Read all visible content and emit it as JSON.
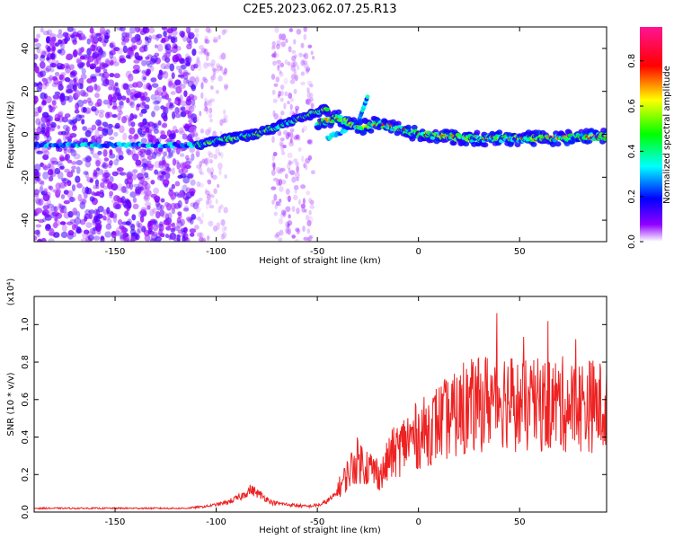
{
  "title": "C2E5.2023.062.07.25.R13",
  "chart_data": [
    {
      "type": "heatmap",
      "xlabel": "Height of straight line (km)",
      "ylabel": "Frequency (Hz)",
      "xlim": [
        -190,
        93
      ],
      "ylim": [
        -50,
        50
      ],
      "x_ticks": [
        -150,
        -100,
        -50,
        0,
        50
      ],
      "x_tick_labels": [
        "-150",
        "-100",
        "-50",
        "0",
        "50"
      ],
      "y_ticks": [
        -40,
        -20,
        0,
        20,
        40
      ],
      "y_tick_labels": [
        "-40",
        "-20",
        "0",
        "20",
        "40"
      ],
      "colorbar": {
        "label": "Normalized spectral amplitude",
        "range": [
          0,
          0.95
        ],
        "ticks": [
          0.0,
          0.2,
          0.4,
          0.6,
          0.8
        ],
        "tick_labels": [
          "0.0",
          "0.2",
          "0.4",
          "0.6",
          "0.8"
        ],
        "colors": [
          "#ffffff",
          "#9000ff",
          "#0000ff",
          "#00ffff",
          "#00ff00",
          "#ffff00",
          "#ff0000",
          "#ff1493"
        ]
      },
      "ridges": [
        {
          "x": [
            -190,
            -150,
            -110,
            -100,
            -80,
            -60,
            -45
          ],
          "y": [
            -5,
            -5,
            -5,
            -3,
            0,
            7,
            12
          ]
        },
        {
          "x": [
            -50,
            -40,
            -30,
            -20,
            0,
            30,
            60,
            90
          ],
          "y": [
            5,
            8,
            3,
            5,
            0,
            -2,
            -2,
            -1
          ]
        }
      ],
      "grid": false
    },
    {
      "type": "line",
      "xlabel": "Height of straight line (km)",
      "ylabel": "SNR (10 * v/v)",
      "y_multiplier_label": "(x10⁴)",
      "xlim": [
        -190,
        93
      ],
      "ylim": [
        0,
        1.15
      ],
      "x_ticks": [
        -150,
        -100,
        -50,
        0,
        50
      ],
      "x_tick_labels": [
        "-150",
        "-100",
        "-50",
        "0",
        "50"
      ],
      "y_ticks": [
        0.0,
        0.2,
        0.4,
        0.6,
        0.8,
        1.0
      ],
      "y_tick_labels": [
        "0.0",
        "0.2",
        "0.4",
        "0.6",
        "0.8",
        "1.0"
      ],
      "color": "#ee2222",
      "series": [
        {
          "x": [
            -190,
            -170,
            -150,
            -130,
            -115,
            -105,
            -95,
            -88,
            -83,
            -78,
            -72,
            -65,
            -55,
            -48,
            -42,
            -38,
            -34,
            -30,
            -26,
            -22,
            -18,
            -14,
            -10,
            -6,
            -2,
            2,
            6,
            10,
            15,
            20,
            25,
            30,
            35,
            40,
            45,
            50,
            55,
            60,
            65,
            70,
            75,
            80,
            85,
            90,
            93
          ],
          "y": [
            0.02,
            0.02,
            0.02,
            0.02,
            0.02,
            0.03,
            0.05,
            0.08,
            0.12,
            0.09,
            0.05,
            0.04,
            0.03,
            0.04,
            0.08,
            0.15,
            0.22,
            0.28,
            0.25,
            0.22,
            0.2,
            0.3,
            0.33,
            0.38,
            0.4,
            0.42,
            0.45,
            0.48,
            0.5,
            0.52,
            0.56,
            0.57,
            0.6,
            0.62,
            0.6,
            0.56,
            0.56,
            0.57,
            0.57,
            0.58,
            0.56,
            0.57,
            0.57,
            0.56,
            0.55
          ]
        }
      ],
      "grid": false
    }
  ]
}
